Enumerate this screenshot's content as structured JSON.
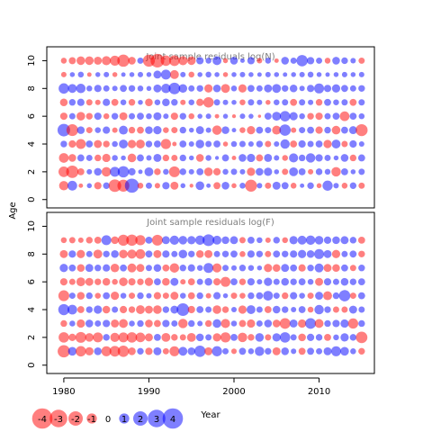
{
  "chart_data": {
    "type": "scatter",
    "subtype": "bubble-residual-grid",
    "xlabel": "Year",
    "ylabel": "Age",
    "xlim": [
      1978,
      2016.5
    ],
    "ylim": [
      -0.6,
      11
    ],
    "x_ticks": [
      1980,
      1990,
      2000,
      2010
    ],
    "y_ticks": [
      0,
      2,
      4,
      6,
      8,
      10
    ],
    "colors": {
      "positive": "#0000FF",
      "negative": "#FF0000",
      "alpha": 0.5
    },
    "panels": [
      {
        "title": "Joint sample residuals log(N)",
        "ages": [
          1,
          2,
          3,
          4,
          5,
          6,
          7,
          8,
          9,
          10
        ],
        "years_start": 1980,
        "years_end": 2015,
        "residuals": [
          [
            -1.8,
            1.9,
            -0.4,
            0.5,
            -1.1,
            0.9,
            -3.2,
            -2.9,
            4.0,
            -0.7,
            0.8,
            -0.6,
            1.1,
            -1.3,
            0.5,
            -0.3,
            1.5,
            0.4,
            -1.0,
            1.2,
            -0.5,
            0.7,
            -2.9,
            0.6,
            -0.8,
            1.3,
            1.0,
            -0.7,
            0.4,
            0.9,
            -0.5,
            2.1,
            0.6,
            -0.7,
            0.9,
            -0.8
          ],
          [
            -2.3,
            -3.1,
            -1.0,
            0.6,
            1.2,
            -1.8,
            2.0,
            2.6,
            1.1,
            0.4,
            1.6,
            -0.9,
            0.7,
            -2.4,
            0.9,
            0.6,
            1.0,
            -1.5,
            -1.1,
            0.7,
            0.8,
            0.6,
            -1.4,
            1.2,
            1.4,
            0.5,
            -0.8,
            1.6,
            1.0,
            -0.6,
            0.9,
            0.7,
            -1.8,
            1.0,
            0.5,
            0.8
          ],
          [
            -1.9,
            -1.2,
            1.0,
            0.8,
            -0.9,
            -1.4,
            0.7,
            0.5,
            -1.5,
            1.0,
            0.6,
            1.3,
            -0.9,
            -0.8,
            0.9,
            0.5,
            -1.2,
            0.7,
            0.3,
            1.0,
            -0.4,
            1.2,
            1.4,
            -1.0,
            1.3,
            0.6,
            -0.7,
            1.7,
            0.9,
            1.8,
            1.1,
            0.8,
            0.5,
            1.2,
            -0.9,
            1.0
          ],
          [
            0.9,
            -1.1,
            -2.0,
            1.0,
            -1.3,
            -0.9,
            0.7,
            1.6,
            -1.4,
            -1.6,
            0.9,
            1.0,
            -2.1,
            -0.4,
            1.0,
            0.6,
            1.5,
            0.8,
            1.0,
            -0.5,
            0.7,
            0.8,
            0.6,
            0.9,
            -0.8,
            0.6,
            1.8,
            -1.0,
            1.1,
            0.8,
            1.0,
            -1.4,
            1.6,
            -0.8,
            1.1,
            0.6
          ],
          [
            3.2,
            -2.8,
            1.2,
            -0.8,
            0.7,
            1.1,
            -0.6,
            1.6,
            -0.9,
            -1.0,
            1.2,
            1.4,
            -0.7,
            -0.8,
            0.9,
            0.5,
            1.3,
            0.6,
            -1.8,
            1.2,
            0.4,
            -0.7,
            -1.4,
            1.0,
            0.8,
            -1.6,
            2.6,
            -0.6,
            0.8,
            1.0,
            -1.1,
            0.9,
            -1.5,
            1.0,
            1.3,
            -2.9
          ],
          [
            -1.1,
            0.8,
            -1.5,
            -0.9,
            1.1,
            -0.7,
            0.9,
            -1.3,
            0.8,
            1.0,
            0.7,
            1.3,
            0.6,
            -1.1,
            0.9,
            -0.7,
            0.5,
            0.6,
            -0.4,
            0.5,
            -0.3,
            0.6,
            0.5,
            -0.2,
            1.0,
            1.6,
            2.2,
            1.4,
            0.7,
            -0.9,
            -1.1,
            0.8,
            1.0,
            -1.9,
            1.0,
            0.7
          ],
          [
            -1.2,
            0.9,
            1.1,
            -0.8,
            -0.6,
            1.1,
            -1.0,
            0.7,
            -0.9,
            0.5,
            -1.2,
            0.7,
            1.2,
            0.9,
            -0.6,
            0.7,
            -1.1,
            -2.2,
            0.8,
            0.6,
            0.5,
            -0.7,
            0.8,
            0.6,
            -0.5,
            0.7,
            0.8,
            -1.0,
            0.8,
            0.6,
            -0.9,
            1.0,
            0.7,
            0.8,
            -1.0,
            0.8
          ],
          [
            2.2,
            1.6,
            1.8,
            0.7,
            1.1,
            0.8,
            0.6,
            1.0,
            0.9,
            0.7,
            0.5,
            1.3,
            1.8,
            2.7,
            1.5,
            0.8,
            0.9,
            -1.4,
            1.2,
            -1.6,
            0.7,
            -1.4,
            1.0,
            0.8,
            1.3,
            1.6,
            0.9,
            1.2,
            0.6,
            1.1,
            2.0,
            1.1,
            1.4,
            1.0,
            0.8,
            0.9
          ],
          [
            -0.6,
            0.5,
            0.7,
            -0.4,
            0.5,
            0.6,
            -0.5,
            0.4,
            0.5,
            0.6,
            0.5,
            1.3,
            2.0,
            -1.6,
            0.6,
            -0.7,
            0.5,
            0.7,
            0.5,
            -0.5,
            0.5,
            0.6,
            0.5,
            0.4,
            0.6,
            0.5,
            0.4,
            0.5,
            0.6,
            0.7,
            0.5,
            0.4,
            0.5,
            0.6,
            0.5,
            0.6
          ],
          [
            -0.7,
            -1.0,
            -1.5,
            -1.5,
            -1.3,
            -1.7,
            -2.0,
            -3.0,
            -1.2,
            0.8,
            -2.9,
            -3.8,
            -2.2,
            -2.3,
            -1.7,
            -1.5,
            1.1,
            0.7,
            1.6,
            -0.5,
            1.2,
            0.4,
            1.1,
            -0.6,
            0.7,
            -0.4,
            1.2,
            0.8,
            2.6,
            1.1,
            0.8,
            -0.7,
            1.2,
            0.9,
            0.6,
            -0.8
          ]
        ]
      },
      {
        "title": "Joint sample residuals log(F)",
        "ages": [
          1,
          2,
          3,
          4,
          5,
          6,
          7,
          8,
          9
        ],
        "years_start": 1980,
        "years_end": 2015,
        "residuals": [
          [
            -3.1,
            1.5,
            -2.2,
            -1.4,
            1.2,
            -2.0,
            -2.3,
            -2.6,
            -1.2,
            0.9,
            -1.1,
            1.3,
            -0.8,
            -2.0,
            1.6,
            1.2,
            2.6,
            -1.3,
            2.1,
            0.8,
            -0.6,
            1.0,
            0.7,
            1.8,
            0.9,
            -1.3,
            1.2,
            0.6,
            -1.0,
            1.0,
            0.8,
            1.3,
            2.0,
            1.5,
            0.7,
            -0.9
          ],
          [
            -2.2,
            -1.1,
            -2.4,
            -1.5,
            -2.0,
            0.9,
            -1.7,
            -2.0,
            -2.2,
            -1.9,
            -1.3,
            1.0,
            -1.6,
            -0.9,
            -0.8,
            -1.6,
            1.2,
            0.8,
            -1.4,
            -2.1,
            1.0,
            -1.8,
            -0.9,
            1.5,
            -0.8,
            1.4,
            2.2,
            0.8,
            -1.2,
            1.1,
            0.9,
            -1.0,
            0.7,
            1.4,
            0.9,
            -2.7
          ],
          [
            -0.9,
            0.7,
            -1.4,
            1.2,
            0.8,
            1.1,
            -1.3,
            -1.6,
            0.7,
            0.9,
            -1.2,
            -1.0,
            1.1,
            0.8,
            -1.8,
            0.9,
            0.6,
            -0.9,
            1.5,
            -1.7,
            0.7,
            -1.0,
            -1.4,
            0.8,
            1.2,
            -1.2,
            -2.3,
            1.3,
            -1.4,
            2.3,
            -1.6,
            0.9,
            1.1,
            1.4,
            -2.1,
            0.9
          ],
          [
            2.5,
            1.9,
            -1.0,
            0.9,
            1.4,
            -1.2,
            0.8,
            -1.1,
            -0.9,
            -1.6,
            -1.3,
            -1.5,
            0.9,
            1.3,
            3.2,
            -1.1,
            1.0,
            0.8,
            -1.5,
            -0.9,
            0.6,
            -1.4,
            1.6,
            0.8,
            -1.0,
            1.2,
            0.9,
            0.6,
            1.0,
            -0.7,
            1.8,
            0.9,
            -0.8,
            -0.8,
            1.3,
            0.8
          ],
          [
            -2.4,
            0.8,
            -1.2,
            0.9,
            -0.7,
            1.0,
            -1.4,
            0.7,
            -0.8,
            0.9,
            0.6,
            -1.1,
            -0.8,
            -1.3,
            0.7,
            -1.0,
            0.9,
            -0.6,
            1.1,
            0.5,
            -0.8,
            -0.7,
            0.9,
            1.0,
            1.9,
            0.8,
            -0.9,
            1.1,
            0.7,
            -0.8,
            1.3,
            -1.6,
            0.9,
            2.6,
            -0.8,
            1.0
          ],
          [
            -1.1,
            -0.8,
            -1.6,
            -1.3,
            -0.9,
            -1.2,
            -0.7,
            -1.5,
            -1.1,
            -0.9,
            -1.4,
            1.0,
            -1.2,
            1.3,
            -0.6,
            -1.0,
            0.8,
            1.2,
            -1.1,
            -2.0,
            1.0,
            -0.9,
            1.1,
            0.6,
            1.4,
            0.8,
            1.2,
            0.9,
            1.0,
            0.7,
            -1.3,
            1.1,
            0.8,
            1.2,
            0.9,
            1.0
          ],
          [
            1.4,
            1.0,
            -1.2,
            1.3,
            0.9,
            1.1,
            -1.5,
            1.0,
            -1.6,
            -1.3,
            0.8,
            1.2,
            -1.0,
            -1.8,
            0.9,
            1.1,
            0.7,
            2.0,
            -1.7,
            0.8,
            0.6,
            0.9,
            0.7,
            0.5,
            -1.4,
            -1.2,
            1.3,
            1.0,
            -1.1,
            0.9,
            1.6,
            -1.3,
            -1.2,
            1.0,
            -0.8,
            0.9
          ],
          [
            -1.3,
            1.1,
            -1.4,
            0.8,
            -1.6,
            0.9,
            1.2,
            -1.5,
            -1.7,
            -1.9,
            1.0,
            -1.3,
            1.1,
            0.8,
            1.5,
            0.9,
            -1.2,
            -1.3,
            0.8,
            0.9,
            1.0,
            -0.7,
            1.1,
            0.9,
            -0.8,
            1.0,
            0.9,
            1.1,
            1.4,
            1.2,
            2.0,
            1.3,
            -1.4,
            0.8,
            1.0,
            -0.9
          ],
          [
            -0.7,
            -0.8,
            -0.6,
            -0.9,
            -1.0,
            2.0,
            -1.2,
            -2.5,
            -2.6,
            -2.1,
            1.0,
            -2.4,
            1.3,
            1.7,
            1.5,
            1.4,
            1.8,
            2.8,
            1.6,
            1.2,
            1.3,
            -0.8,
            1.0,
            0.7,
            -0.6,
            0.9,
            -0.7,
            1.4,
            1.6,
            1.8,
            1.5,
            1.1,
            1.2,
            1.3,
            0.9,
            -1.0
          ]
        ]
      }
    ],
    "legend": {
      "values": [
        -4,
        -3,
        -2,
        -1,
        0,
        1,
        2,
        3,
        4
      ],
      "labels": [
        "-4",
        "-3",
        "-2",
        "-1",
        "0",
        "1",
        "2",
        "3",
        "4"
      ],
      "placement": "bottom-left"
    }
  }
}
